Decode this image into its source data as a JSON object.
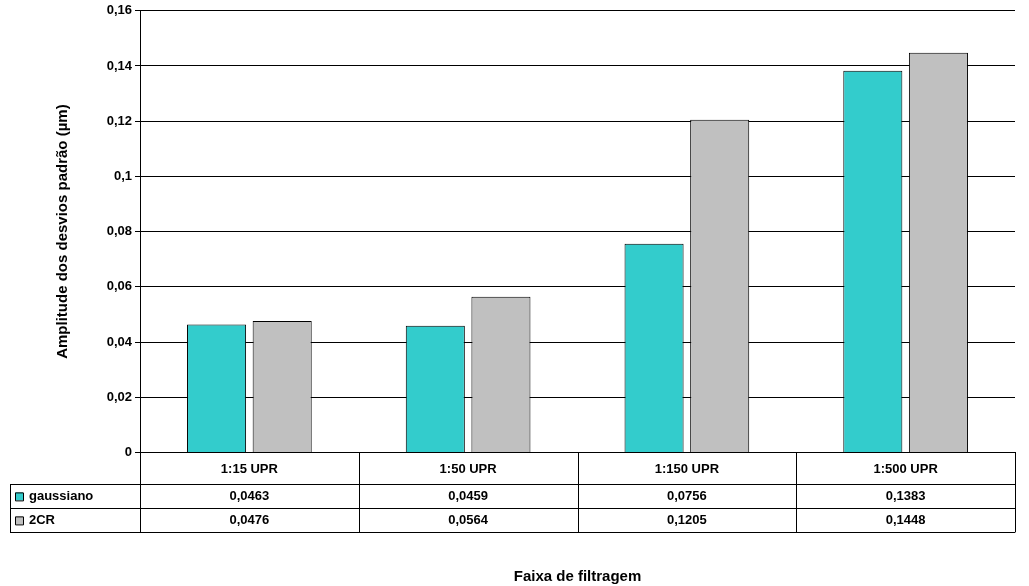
{
  "chart_data": {
    "type": "bar",
    "annotations": [
      "Faixa de filtragem"
    ],
    "ylabel": "Amplitude dos desvios padrão (µm)",
    "categories": [
      "1:15 UPR",
      "1:50 UPR",
      "1:150 UPR",
      "1:500 UPR"
    ],
    "series": [
      {
        "name": "gaussiano",
        "color": "#33cccc",
        "values": [
          0.0463,
          0.0459,
          0.0756,
          0.1383
        ],
        "value_labels": [
          "0,0463",
          "0,0459",
          "0,0756",
          "0,1383"
        ]
      },
      {
        "name": "2CR",
        "color": "#c0c0c0",
        "values": [
          0.0476,
          0.0564,
          0.1205,
          0.1448
        ],
        "value_labels": [
          "0,0476",
          "0,0564",
          "0,1205",
          "0,1448"
        ]
      }
    ],
    "ylim": [
      0,
      0.16
    ],
    "yticks": [
      0,
      {
        "value": 0.02,
        "label": "0,02"
      },
      {
        "value": 0.04,
        "label": "0,04"
      },
      {
        "value": 0.06,
        "label": "0,06"
      },
      {
        "value": 0.08,
        "label": "0,08"
      },
      {
        "value": 0.1,
        "label": "0,1"
      },
      {
        "value": 0.12,
        "label": "0,12"
      },
      {
        "value": 0.14,
        "label": "0,14"
      },
      {
        "value": 0.16,
        "label": "0,16"
      }
    ],
    "grid": "y",
    "legend": "bottom"
  }
}
